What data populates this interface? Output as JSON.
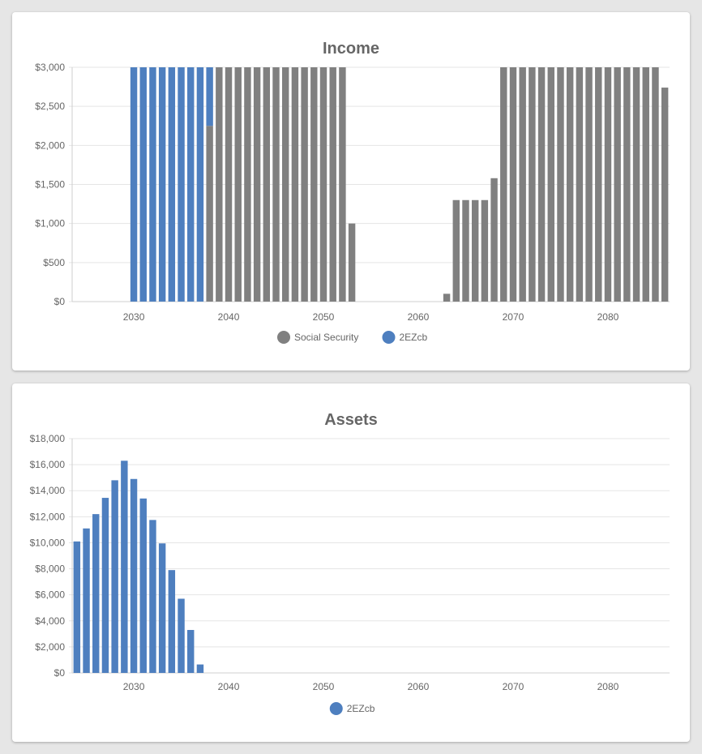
{
  "charts": [
    {
      "id": "income",
      "chart_data": {
        "type": "bar",
        "stacked": true,
        "title": "Income",
        "x_start": 2024,
        "x_end": 2086,
        "x_ticks": [
          2030,
          2040,
          2050,
          2060,
          2070,
          2080
        ],
        "x_tick_labels": [
          "2030",
          "2040",
          "2050",
          "2060",
          "2070",
          "2080"
        ],
        "ylim": [
          0,
          3000
        ],
        "y_ticks": [
          0,
          500,
          1000,
          1500,
          2000,
          2500,
          3000
        ],
        "y_tick_labels": [
          "$0",
          "$500",
          "$1,000",
          "$1,500",
          "$2,000",
          "$2,500",
          "$3,000"
        ],
        "grid": true,
        "legend_position": "bottom",
        "series": [
          {
            "name": "Social Security",
            "color": "#808080",
            "points": [
              [
                2038,
                2250
              ],
              [
                2039,
                3000
              ],
              [
                2040,
                3000
              ],
              [
                2041,
                3000
              ],
              [
                2042,
                3000
              ],
              [
                2043,
                3000
              ],
              [
                2044,
                3000
              ],
              [
                2045,
                3000
              ],
              [
                2046,
                3000
              ],
              [
                2047,
                3000
              ],
              [
                2048,
                3000
              ],
              [
                2049,
                3000
              ],
              [
                2050,
                3000
              ],
              [
                2051,
                3000
              ],
              [
                2052,
                3000
              ],
              [
                2053,
                1000
              ],
              [
                2063,
                100
              ],
              [
                2064,
                1300
              ],
              [
                2065,
                1300
              ],
              [
                2066,
                1300
              ],
              [
                2067,
                1300
              ],
              [
                2068,
                1580
              ],
              [
                2069,
                3000
              ],
              [
                2070,
                3000
              ],
              [
                2071,
                3000
              ],
              [
                2072,
                3000
              ],
              [
                2073,
                3000
              ],
              [
                2074,
                3000
              ],
              [
                2075,
                3000
              ],
              [
                2076,
                3000
              ],
              [
                2077,
                3000
              ],
              [
                2078,
                3000
              ],
              [
                2079,
                3000
              ],
              [
                2080,
                3000
              ],
              [
                2081,
                3000
              ],
              [
                2082,
                3000
              ],
              [
                2083,
                3000
              ],
              [
                2084,
                3000
              ],
              [
                2085,
                3000
              ],
              [
                2086,
                2740
              ]
            ]
          },
          {
            "name": "2EZcb",
            "color": "#4e7fbf",
            "points": [
              [
                2030,
                3000
              ],
              [
                2031,
                3000
              ],
              [
                2032,
                3000
              ],
              [
                2033,
                3000
              ],
              [
                2034,
                3000
              ],
              [
                2035,
                3000
              ],
              [
                2036,
                3000
              ],
              [
                2037,
                3000
              ],
              [
                2038,
                750
              ]
            ]
          }
        ]
      }
    },
    {
      "id": "assets",
      "chart_data": {
        "type": "bar",
        "stacked": true,
        "title": "Assets",
        "x_start": 2024,
        "x_end": 2086,
        "x_ticks": [
          2030,
          2040,
          2050,
          2060,
          2070,
          2080
        ],
        "x_tick_labels": [
          "2030",
          "2040",
          "2050",
          "2060",
          "2070",
          "2080"
        ],
        "ylim": [
          0,
          18000
        ],
        "y_ticks": [
          0,
          2000,
          4000,
          6000,
          8000,
          10000,
          12000,
          14000,
          16000,
          18000
        ],
        "y_tick_labels": [
          "$0",
          "$2,000",
          "$4,000",
          "$6,000",
          "$8,000",
          "$10,000",
          "$12,000",
          "$14,000",
          "$16,000",
          "$18,000"
        ],
        "grid": true,
        "legend_position": "bottom",
        "series": [
          {
            "name": "2EZcb",
            "color": "#4e7fbf",
            "points": [
              [
                2024,
                10100
              ],
              [
                2025,
                11100
              ],
              [
                2026,
                12200
              ],
              [
                2027,
                13450
              ],
              [
                2028,
                14800
              ],
              [
                2029,
                16300
              ],
              [
                2030,
                14900
              ],
              [
                2031,
                13400
              ],
              [
                2032,
                11750
              ],
              [
                2033,
                9950
              ],
              [
                2034,
                7900
              ],
              [
                2035,
                5700
              ],
              [
                2036,
                3300
              ],
              [
                2037,
                650
              ]
            ]
          }
        ]
      }
    }
  ]
}
